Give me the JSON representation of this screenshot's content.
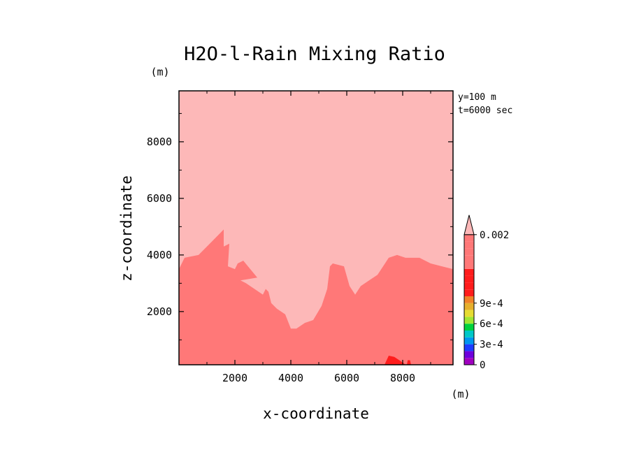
{
  "chart_data": {
    "type": "heatmap",
    "title": "H2O-l-Rain Mixing Ratio",
    "xlabel": "x-coordinate",
    "ylabel": "z-coordinate",
    "x_unit": "(m)",
    "y_unit": "(m)",
    "xlim": [
      0,
      9800
    ],
    "ylim": [
      120,
      9800
    ],
    "x_ticks": [
      2000,
      4000,
      6000,
      8000
    ],
    "y_ticks": [
      2000,
      4000,
      6000,
      8000
    ],
    "x_tick_labels": [
      "2000",
      "4000",
      "6000",
      "8000"
    ],
    "y_tick_labels": [
      "2000",
      "4000",
      "6000",
      "8000"
    ],
    "annotations": [
      "y=100 m",
      "t=6000 sec"
    ],
    "grid": false,
    "background_color": "#fdb8b8",
    "regions": [
      {
        "name": "mid",
        "color": "#ff7878",
        "points": [
          [
            0,
            120
          ],
          [
            0,
            3500
          ],
          [
            200,
            3900
          ],
          [
            700,
            4000
          ],
          [
            1100,
            4400
          ],
          [
            1500,
            4800
          ],
          [
            1600,
            4900
          ],
          [
            1600,
            4300
          ],
          [
            1800,
            4400
          ],
          [
            1750,
            3600
          ],
          [
            2000,
            3500
          ],
          [
            2100,
            3700
          ],
          [
            2300,
            3800
          ],
          [
            2800,
            3200
          ],
          [
            2200,
            3100
          ],
          [
            2400,
            3000
          ],
          [
            2700,
            2800
          ],
          [
            3000,
            2600
          ],
          [
            3100,
            2800
          ],
          [
            2900,
            3000
          ],
          [
            3200,
            2700
          ],
          [
            3300,
            2300
          ],
          [
            3500,
            2100
          ],
          [
            3800,
            1900
          ],
          [
            4000,
            1400
          ],
          [
            4200,
            1400
          ],
          [
            4500,
            1600
          ],
          [
            4800,
            1700
          ],
          [
            5100,
            2200
          ],
          [
            5300,
            2800
          ],
          [
            5400,
            3600
          ],
          [
            5500,
            3700
          ],
          [
            5900,
            3600
          ],
          [
            6100,
            2900
          ],
          [
            6300,
            2600
          ],
          [
            6500,
            2900
          ],
          [
            6800,
            3100
          ],
          [
            7100,
            3300
          ],
          [
            7300,
            3600
          ],
          [
            7500,
            3900
          ],
          [
            7800,
            4000
          ],
          [
            8100,
            3900
          ],
          [
            8600,
            3900
          ],
          [
            9000,
            3700
          ],
          [
            9400,
            3600
          ],
          [
            9800,
            3500
          ],
          [
            9800,
            120
          ]
        ]
      },
      {
        "name": "high-patch",
        "color": "#ff1c1c",
        "points": [
          [
            7350,
            120
          ],
          [
            7500,
            440
          ],
          [
            7700,
            400
          ],
          [
            8000,
            200
          ],
          [
            8100,
            120
          ]
        ]
      },
      {
        "name": "high-dot",
        "color": "#ff1c1c",
        "points": [
          [
            8150,
            120
          ],
          [
            8180,
            280
          ],
          [
            8260,
            280
          ],
          [
            8300,
            120
          ]
        ]
      }
    ],
    "colorbar": {
      "boxes": [
        "#a000c0",
        "#6e00dc",
        "#1e3cff",
        "#0096f0",
        "#00c8c8",
        "#00d23c",
        "#a0e632",
        "#e6dc32",
        "#e6af2d",
        "#f08228",
        "#ff1c1c",
        "#ff1c1c",
        "#ff1c1c",
        "#ff1c1c",
        "#ff7878",
        "#ff7878",
        "#ff7878",
        "#ff7878",
        "#ff7878"
      ],
      "extend_color": "#fdb8b8",
      "labels": [
        {
          "text": "0",
          "box": 0
        },
        {
          "text": "3e-4",
          "box": 3
        },
        {
          "text": "6e-4",
          "box": 6
        },
        {
          "text": "9e-4",
          "box": 9
        },
        {
          "text": "0.002",
          "box": 19
        }
      ]
    }
  }
}
